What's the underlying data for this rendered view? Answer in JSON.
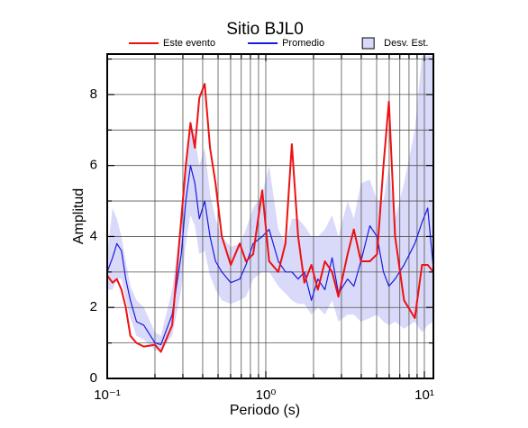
{
  "chart_data": {
    "type": "line",
    "title": "Sitio BJL0",
    "xlabel": "Periodo (s)",
    "ylabel": "Amplitud",
    "xscale": "log",
    "xlim": [
      0.1,
      11.4
    ],
    "ylim": [
      0,
      9.14
    ],
    "xticks": [
      {
        "value": 0.1,
        "label": "10⁻¹"
      },
      {
        "value": 1,
        "label": "10⁰"
      },
      {
        "value": 10,
        "label": "10¹"
      }
    ],
    "x_minor_ticks": [
      0.2,
      0.3,
      0.4,
      0.5,
      0.6,
      0.7,
      0.8,
      0.9,
      2,
      3,
      4,
      5,
      6,
      7,
      8,
      9
    ],
    "yticks": [
      0,
      2,
      4,
      6,
      8
    ],
    "y_minor_ticks": [
      1,
      3,
      5,
      7,
      9
    ],
    "grid": true,
    "legend": "top",
    "x": [
      0.1,
      0.108,
      0.115,
      0.123,
      0.131,
      0.14,
      0.153,
      0.17,
      0.2,
      0.218,
      0.257,
      0.293,
      0.313,
      0.335,
      0.357,
      0.381,
      0.412,
      0.445,
      0.482,
      0.528,
      0.601,
      0.685,
      0.75,
      0.833,
      0.949,
      1.05,
      1.2,
      1.33,
      1.46,
      1.6,
      1.75,
      1.94,
      2.13,
      2.36,
      2.62,
      2.87,
      3.28,
      3.59,
      3.98,
      4.53,
      5.03,
      5.52,
      5.97,
      6.54,
      7.44,
      8.71,
      9.67,
      10.5,
      11.4
    ],
    "series": [
      {
        "name": "Este evento",
        "color": "#ee1111",
        "width": 2,
        "values": [
          2.9,
          2.7,
          2.8,
          2.5,
          2.0,
          1.2,
          1.0,
          0.9,
          0.95,
          0.75,
          1.5,
          4.5,
          6.0,
          7.2,
          6.5,
          7.9,
          8.3,
          6.5,
          5.5,
          4.0,
          3.2,
          3.8,
          3.3,
          3.5,
          5.3,
          3.3,
          3.0,
          3.8,
          6.6,
          4.0,
          2.7,
          3.2,
          2.5,
          3.3,
          3.0,
          2.3,
          3.5,
          4.2,
          3.3,
          3.3,
          3.5,
          6.0,
          7.8,
          4.0,
          2.2,
          1.7,
          3.2,
          3.2,
          3.0
        ]
      },
      {
        "name": "Promedio",
        "color": "#1a1ae0",
        "width": 1.2,
        "values": [
          3.0,
          3.4,
          3.8,
          3.6,
          2.8,
          2.2,
          1.6,
          1.5,
          1.0,
          0.95,
          1.8,
          3.5,
          5.0,
          6.0,
          5.5,
          4.5,
          5.0,
          4.0,
          3.3,
          3.0,
          2.7,
          2.8,
          3.2,
          3.8,
          4.0,
          4.2,
          3.3,
          3.0,
          3.0,
          2.8,
          3.0,
          2.2,
          2.8,
          2.5,
          3.4,
          2.4,
          2.8,
          2.6,
          3.3,
          4.3,
          4.0,
          3.0,
          2.6,
          2.8,
          3.2,
          3.8,
          4.4,
          4.8,
          3.1
        ]
      }
    ],
    "band": {
      "name": "Desv. Est.",
      "color": "#d9d9f9",
      "upper": [
        3.5,
        4.8,
        4.5,
        4.0,
        3.3,
        2.6,
        2.2,
        2.0,
        1.3,
        1.2,
        2.5,
        4.5,
        6.0,
        7.2,
        6.8,
        6.0,
        6.5,
        5.2,
        4.5,
        4.0,
        3.7,
        3.8,
        4.2,
        4.8,
        5.2,
        6.0,
        4.2,
        3.8,
        4.5,
        4.5,
        4.3,
        4.0,
        4.0,
        4.2,
        4.6,
        4.0,
        5.0,
        4.5,
        5.5,
        5.6,
        5.0,
        5.0,
        6.0,
        4.5,
        5.5,
        7.0,
        9.1,
        9.1,
        9.1
      ],
      "lower": [
        2.5,
        2.5,
        2.8,
        2.8,
        2.2,
        1.7,
        1.2,
        1.1,
        0.8,
        0.8,
        1.2,
        2.5,
        3.8,
        4.6,
        4.3,
        3.5,
        3.6,
        2.9,
        2.5,
        2.2,
        2.1,
        2.2,
        2.3,
        2.8,
        3.0,
        3.0,
        2.6,
        2.4,
        2.2,
        2.1,
        2.1,
        1.8,
        2.0,
        1.8,
        2.2,
        1.6,
        1.8,
        1.8,
        1.6,
        1.7,
        1.8,
        1.6,
        1.5,
        1.6,
        1.4,
        1.6,
        1.3,
        1.5,
        1.6
      ]
    }
  }
}
